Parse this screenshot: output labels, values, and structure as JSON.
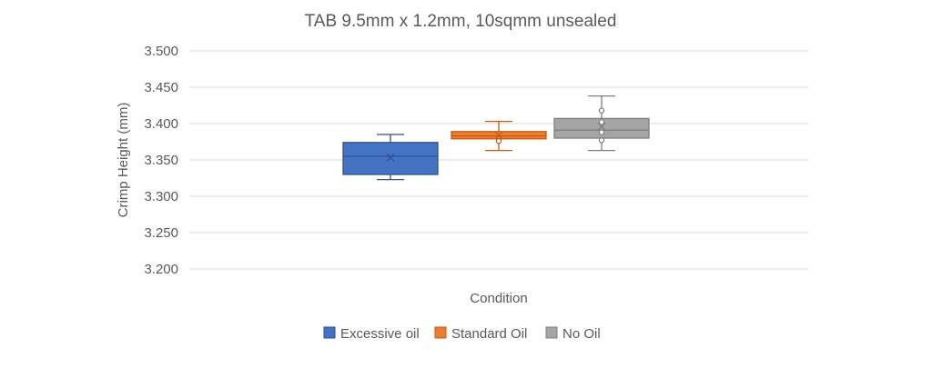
{
  "chart_data": {
    "type": "box",
    "title": "TAB 9.5mm x 1.2mm, 10sqmm unsealed",
    "xlabel": "Condition",
    "ylabel": "Crimp Height (mm)",
    "ylim": [
      3.2,
      3.5
    ],
    "yticks": [
      "3.200",
      "3.250",
      "3.300",
      "3.350",
      "3.400",
      "3.450",
      "3.500"
    ],
    "grid": true,
    "legend_position": "bottom",
    "series": [
      {
        "name": "Excessive oil",
        "color": "#4472c4",
        "edge_color": "#2f528f",
        "whisker_low": 3.323,
        "q1": 3.33,
        "median": 3.355,
        "q3": 3.374,
        "whisker_high": 3.385,
        "mean": 3.353,
        "points": []
      },
      {
        "name": "Standard Oil",
        "color": "#ed7d31",
        "edge_color": "#c55a11",
        "whisker_low": 3.363,
        "q1": 3.379,
        "median": 3.383,
        "q3": 3.389,
        "whisker_high": 3.403,
        "mean": 3.384,
        "points": [
          3.376
        ]
      },
      {
        "name": "No Oil",
        "color": "#a5a5a5",
        "edge_color": "#7f7f7f",
        "whisker_low": 3.363,
        "q1": 3.38,
        "median": 3.391,
        "q3": 3.407,
        "whisker_high": 3.438,
        "mean": 3.396,
        "points": [
          3.418,
          3.402,
          3.388,
          3.377
        ]
      }
    ]
  }
}
